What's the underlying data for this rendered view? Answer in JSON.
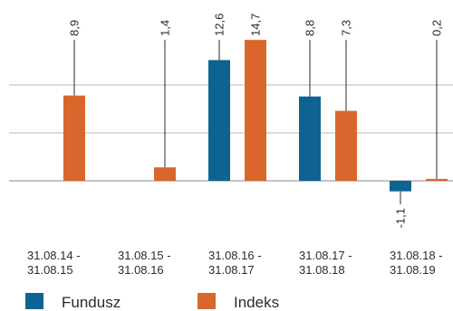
{
  "chart_data": {
    "type": "bar",
    "categories": [
      [
        "31.08.14 -",
        "31.08.15"
      ],
      [
        "31.08.15 -",
        "31.08.16"
      ],
      [
        "31.08.16 -",
        "31.08.17"
      ],
      [
        "31.08.17 -",
        "31.08.18"
      ],
      [
        "31.08.18 -",
        "31.08.19"
      ]
    ],
    "series": [
      {
        "name": "Fundusz",
        "values": [
          null,
          null,
          12.6,
          8.8,
          -1.1
        ],
        "labels": [
          "",
          "",
          "12,6",
          "8,8",
          "-1,1"
        ],
        "color": "#0f6391"
      },
      {
        "name": "Indeks",
        "values": [
          8.9,
          1.4,
          14.7,
          7.3,
          0.2
        ],
        "labels": [
          "8,9",
          "1,4",
          "14,7",
          "7,3",
          "0,2"
        ],
        "color": "#d9662c"
      }
    ],
    "ylim": [
      -2,
      16
    ],
    "gridlines": [
      0,
      5,
      10
    ],
    "grid": true,
    "legend_position": "bottom-left"
  }
}
